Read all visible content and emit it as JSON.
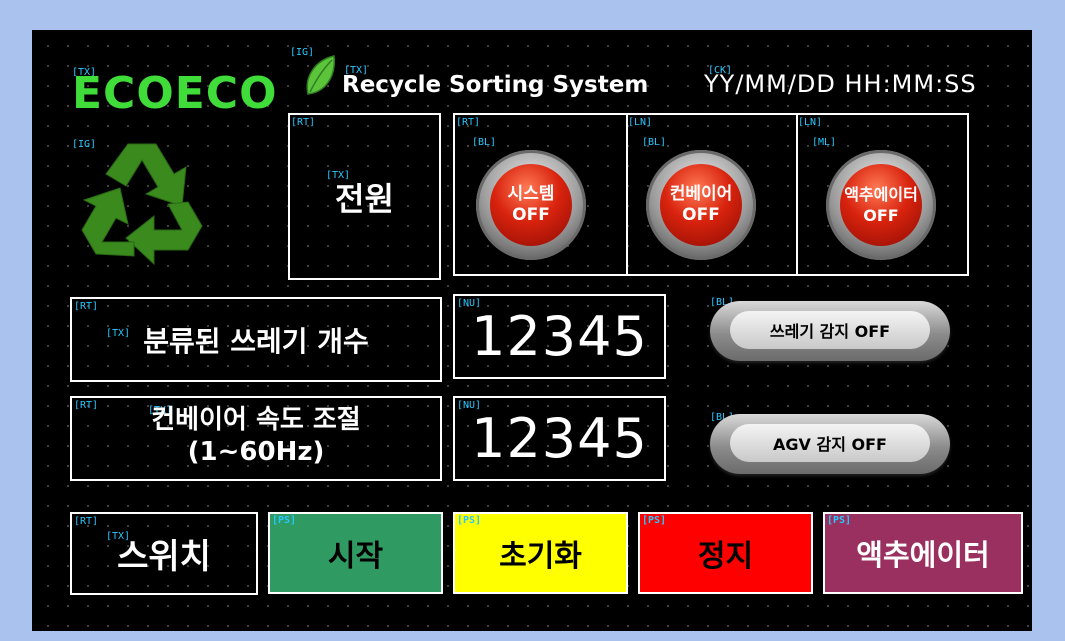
{
  "header": {
    "logo_text": "ECOECO",
    "title": "Recycle Sorting System",
    "clock": "YY/MM/DD HH:MM:SS"
  },
  "tags": {
    "tx": "[TX]",
    "ig": "[IG]",
    "ck": "[CK]",
    "rt": "[RT]",
    "bl": "[BL]",
    "ln": "[LN]",
    "ml": "[ML]",
    "nu": "[NU]",
    "ps": "[PS]"
  },
  "power": {
    "label": "전원"
  },
  "lamps": [
    {
      "line1": "시스템",
      "line2": "OFF"
    },
    {
      "line1": "컨베이어",
      "line2": "OFF"
    },
    {
      "line1": "액추에이터",
      "line2": "OFF"
    }
  ],
  "count": {
    "label": "분류된 쓰레기 개수",
    "value": "12345"
  },
  "speed": {
    "label_line1": "컨베이어 속도 조절",
    "label_line2": "(1~60Hz)",
    "value": "12345"
  },
  "sensors": {
    "trash": "쓰레기 감지 OFF",
    "agv": "AGV 감지 OFF"
  },
  "switch": {
    "label": "스위치"
  },
  "buttons": {
    "start": "시작",
    "reset": "초기화",
    "stop": "정지",
    "actuator": "액추에이터"
  },
  "colors": {
    "start": "#2f9a62",
    "reset": "#ffff00",
    "stop": "#ff0000",
    "actuator": "#9a3060",
    "logo_green": "#3fdc3a",
    "tag_cyan": "#27c8ff"
  }
}
